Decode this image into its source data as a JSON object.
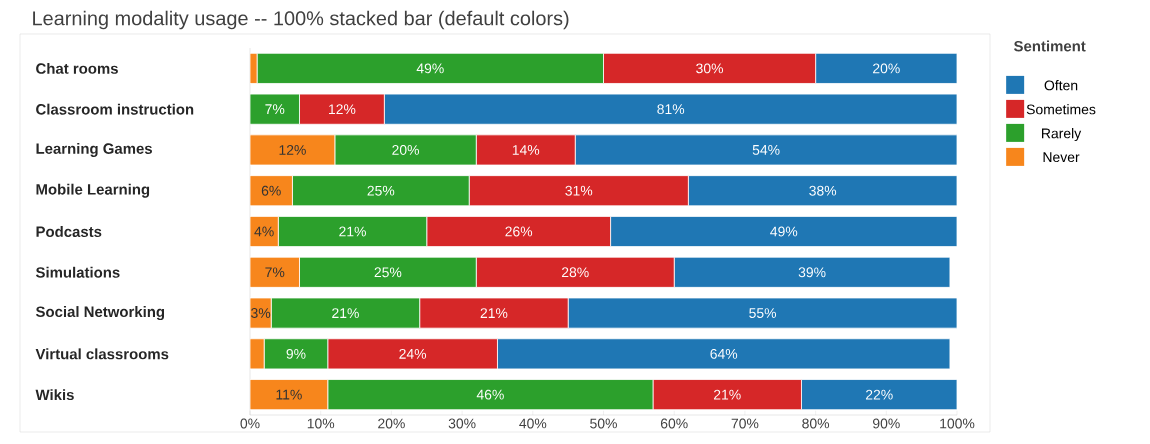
{
  "chart_data": {
    "type": "bar",
    "orientation": "horizontal",
    "stacked": true,
    "title": "Learning modality usage -- 100% stacked bar (default colors)",
    "legend_title": "Sentiment",
    "legend": "right",
    "categories": [
      "Chat rooms",
      "Classroom instruction",
      "Learning Games",
      "Mobile Learning",
      "Podcasts",
      "Simulations",
      "Social Networking",
      "Virtual classrooms",
      "Wikis"
    ],
    "series": [
      {
        "name": "Never",
        "color": "#f7861c",
        "values": [
          1,
          0,
          12,
          6,
          4,
          7,
          3,
          2,
          11
        ],
        "value_labels": [
          null,
          null,
          "12%",
          "6%",
          "4%",
          "7%",
          "3%",
          null,
          "11%"
        ]
      },
      {
        "name": "Rarely",
        "color": "#2ca02c",
        "values": [
          49,
          7,
          20,
          25,
          21,
          25,
          21,
          9,
          46
        ],
        "value_labels": [
          "49%",
          "7%",
          "20%",
          "25%",
          "21%",
          "25%",
          "21%",
          "9%",
          "46%"
        ]
      },
      {
        "name": "Sometimes",
        "color": "#d62728",
        "values": [
          30,
          12,
          14,
          31,
          26,
          28,
          21,
          24,
          21
        ],
        "value_labels": [
          "30%",
          "12%",
          "14%",
          "31%",
          "26%",
          "28%",
          "21%",
          "24%",
          "21%"
        ]
      },
      {
        "name": "Often",
        "color": "#1f77b4",
        "values": [
          20,
          81,
          54,
          38,
          49,
          39,
          55,
          64,
          22
        ],
        "value_labels": [
          "20%",
          "81%",
          "54%",
          "38%",
          "49%",
          "39%",
          "55%",
          "64%",
          "22%"
        ]
      }
    ],
    "xlim": [
      0,
      100
    ],
    "xticks": [
      {
        "value": 0,
        "label": "0%"
      },
      {
        "value": 10,
        "label": "10%"
      },
      {
        "value": 20,
        "label": "20%"
      },
      {
        "value": 30,
        "label": "30%"
      },
      {
        "value": 40,
        "label": "40%"
      },
      {
        "value": 50,
        "label": "50%"
      },
      {
        "value": 60,
        "label": "60%"
      },
      {
        "value": 70,
        "label": "70%"
      },
      {
        "value": 80,
        "label": "80%"
      },
      {
        "value": 90,
        "label": "90%"
      },
      {
        "value": 100,
        "label": "100%"
      }
    ]
  }
}
